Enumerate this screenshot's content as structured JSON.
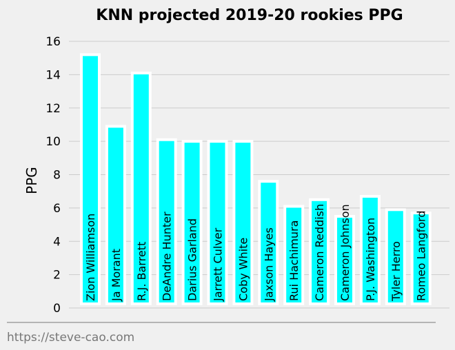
{
  "chart_data": {
    "type": "bar",
    "title": "KNN projected 2019-20 rookies PPG",
    "xlabel": "",
    "ylabel": "PPG",
    "ylim": [
      0,
      16
    ],
    "yticks": [
      0,
      2,
      4,
      6,
      8,
      10,
      12,
      14,
      16
    ],
    "grid": "horizontal",
    "bar_color": "#00ffff",
    "bar_edge_color": "#ffffff",
    "background_color": "#f0f0f0",
    "categories": [
      "Zion Williamson",
      "Ja Morant",
      "R.J. Barrett",
      "DeAndre Hunter",
      "Darius Garland",
      "Jarrett Culver",
      "Coby White",
      "Jaxson Hayes",
      "Rui Hachimura",
      "Cameron Reddish",
      "Cameron Johnson",
      "P.J. Washington",
      "Tyler Herro",
      "Romeo Langford"
    ],
    "values": [
      15.2,
      10.9,
      14.1,
      10.1,
      10.0,
      10.0,
      10.0,
      7.6,
      6.1,
      6.5,
      5.5,
      6.7,
      5.9,
      5.7
    ]
  },
  "footer": {
    "credit": "https://steve-cao.com"
  }
}
